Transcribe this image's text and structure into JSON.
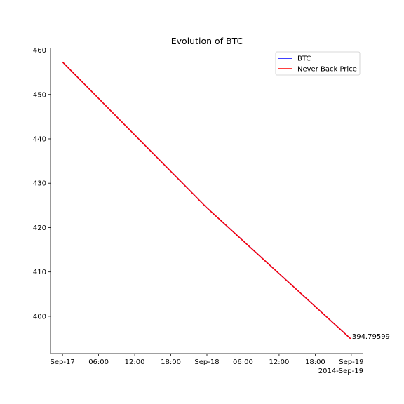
{
  "chart_data": {
    "type": "line",
    "title": "Evolution of BTC",
    "xlabel": "",
    "ylabel": "",
    "x": [
      "2014-09-17 00:00",
      "2014-09-18 00:00",
      "2014-09-19 00:00"
    ],
    "series": [
      {
        "name": "BTC",
        "color": "#0000ff",
        "values": [
          457.33,
          424.44,
          394.79599
        ]
      },
      {
        "name": "Never Back Price",
        "color": "#ff0000",
        "values": [
          457.33,
          424.44,
          394.79599
        ]
      }
    ],
    "xlim": [
      "2014-09-16 22:00",
      "2014-09-19 02:00"
    ],
    "ylim": [
      391.6,
      460.4
    ],
    "x_tick_labels": [
      "Sep-17",
      "06:00",
      "12:00",
      "18:00",
      "Sep-18",
      "06:00",
      "12:00",
      "18:00",
      "Sep-19"
    ],
    "x_offset_label": "2014-Sep-19",
    "y_ticks": [
      400,
      410,
      420,
      430,
      440,
      450,
      460
    ],
    "annotation": "394.79599",
    "legend_position": "top-right",
    "grid": false
  }
}
